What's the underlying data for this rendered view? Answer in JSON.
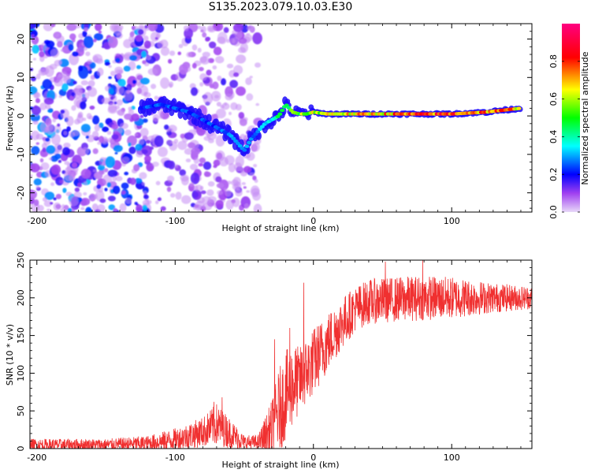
{
  "title": "S135.2023.079.10.03.E30",
  "chart_data": [
    {
      "type": "heatmap",
      "title": "S135.2023.079.10.03.E30",
      "xlabel": "Height of straight line (km)",
      "ylabel": "Frequency (Hz)",
      "xlim": [
        -205,
        158
      ],
      "ylim": [
        -25,
        24
      ],
      "xticks": [
        -200,
        -100,
        0,
        100
      ],
      "yticks": [
        -20,
        -10,
        0,
        10,
        20
      ],
      "colorbar": {
        "label": "Normalized spectral amplitude",
        "range": [
          0,
          1
        ],
        "ticks": [
          "0.0",
          "0.2",
          "0.4",
          "0.6",
          "0.8"
        ],
        "colormap": [
          "#e8d8f8",
          "#8000ff",
          "#0000ff",
          "#00ffff",
          "#00ff00",
          "#ffff00",
          "#ff0000",
          "#ff0080"
        ]
      },
      "ridge": {
        "x": [
          -125,
          -110,
          -100,
          -90,
          -80,
          -70,
          -60,
          -55,
          -50,
          -45,
          -40,
          -35,
          -30,
          -25,
          -20,
          -15,
          -10,
          -5,
          0,
          10,
          25,
          50,
          75,
          100,
          125,
          150
        ],
        "y": [
          2,
          3,
          2,
          1,
          -1,
          -3,
          -5,
          -7,
          -9,
          -6,
          -4,
          -2,
          -1,
          0,
          3,
          1,
          0.5,
          0.5,
          1,
          0.5,
          0.5,
          0.5,
          0.5,
          0.5,
          1,
          2
        ],
        "amplitude": [
          0.25,
          0.25,
          0.25,
          0.25,
          0.25,
          0.25,
          0.3,
          0.3,
          0.3,
          0.3,
          0.3,
          0.35,
          0.4,
          0.45,
          0.5,
          0.55,
          0.6,
          0.6,
          0.65,
          0.7,
          0.7,
          0.75,
          0.8,
          0.85,
          0.8,
          0.75
        ]
      }
    },
    {
      "type": "line",
      "xlabel": "Height of straight line (km)",
      "ylabel": "SNR (10 * v/v)",
      "xlim": [
        -205,
        158
      ],
      "ylim": [
        0,
        250
      ],
      "xticks": [
        -200,
        -100,
        0,
        100
      ],
      "yticks": [
        0,
        50,
        100,
        150,
        200,
        250
      ],
      "color": "#f03030",
      "envelope": {
        "x": [
          -205,
          -150,
          -120,
          -100,
          -80,
          -70,
          -60,
          -50,
          -40,
          -30,
          -25,
          -20,
          -15,
          -10,
          0,
          10,
          20,
          30,
          40,
          60,
          80,
          100,
          130,
          158
        ],
        "mean": [
          5,
          5,
          7,
          12,
          22,
          32,
          20,
          8,
          8,
          25,
          50,
          70,
          85,
          90,
          115,
          140,
          165,
          185,
          195,
          198,
          200,
          200,
          200,
          200
        ],
        "spread": [
          8,
          8,
          10,
          15,
          20,
          28,
          20,
          10,
          10,
          40,
          55,
          60,
          55,
          45,
          45,
          40,
          35,
          30,
          30,
          30,
          30,
          28,
          20,
          15
        ]
      },
      "peaks": [
        {
          "x": -72,
          "y": 62
        },
        {
          "x": -66,
          "y": 68
        },
        {
          "x": -28,
          "y": 145
        },
        {
          "x": -17,
          "y": 160
        },
        {
          "x": -7,
          "y": 220
        },
        {
          "x": 52,
          "y": 248
        },
        {
          "x": 79,
          "y": 250
        }
      ]
    }
  ]
}
